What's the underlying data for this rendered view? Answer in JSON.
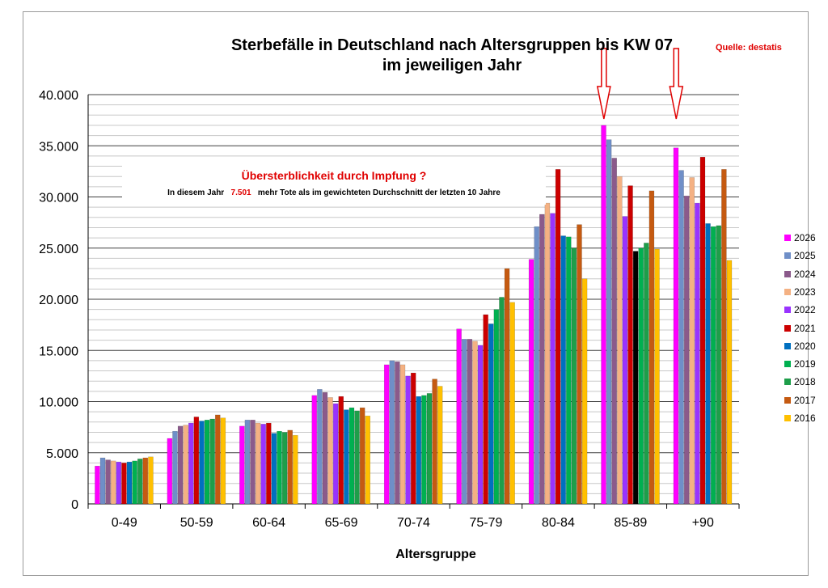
{
  "chart_data": {
    "type": "bar",
    "title": "Sterbefälle in Deutschland nach Altersgruppen bis KW 07",
    "subtitle": "im jeweiligen Jahr",
    "source": "Quelle: destatis",
    "xlabel": "Altersgruppe",
    "ylabel": "",
    "ylim": [
      0,
      40000
    ],
    "yticks": [
      "0",
      "5.000",
      "10.000",
      "15.000",
      "20.000",
      "25.000",
      "30.000",
      "35.000",
      "40.000"
    ],
    "grid": true,
    "legend_position": "right",
    "categories": [
      "0-49",
      "50-59",
      "60-64",
      "65-69",
      "70-74",
      "75-79",
      "80-84",
      "85-89",
      "+90"
    ],
    "annotation": {
      "headline": "Übersterblichkeit durch Impfung ?",
      "prefix": "In diesem Jahr",
      "value": "7.501",
      "suffix": "mehr Tote als im gewichteten Durchschnitt der letzten 10 Jahre"
    },
    "arrows_at": [
      "85-89",
      "+90"
    ],
    "series": [
      {
        "name": "2026",
        "color": "#ff00ff",
        "values": [
          3700,
          6400,
          7600,
          10600,
          13600,
          17100,
          23900,
          37000,
          34800
        ]
      },
      {
        "name": "2025",
        "color": "#6f8fc8",
        "values": [
          4500,
          7100,
          8200,
          11200,
          14000,
          16100,
          27100,
          35600,
          32600
        ]
      },
      {
        "name": "2024",
        "color": "#8b5a8b",
        "values": [
          4300,
          7600,
          8200,
          10900,
          13900,
          16100,
          28300,
          33800,
          30100
        ]
      },
      {
        "name": "2023",
        "color": "#f4b183",
        "values": [
          4200,
          7700,
          7900,
          10400,
          13600,
          15900,
          29400,
          32000,
          31900
        ]
      },
      {
        "name": "2022",
        "color": "#9933ff",
        "values": [
          4100,
          7900,
          7800,
          9800,
          12500,
          15500,
          28400,
          28100,
          29400
        ]
      },
      {
        "name": "2021",
        "color": "#cc0000",
        "values": [
          4000,
          8500,
          7900,
          10500,
          12800,
          18500,
          32700,
          31100,
          33900
        ]
      },
      {
        "name": "2020",
        "color": "#0070c0",
        "values": [
          4100,
          8100,
          6900,
          9200,
          10500,
          17600,
          26200,
          24700,
          27400
        ]
      },
      {
        "name": "2019",
        "color": "#00b050",
        "values": [
          4200,
          8200,
          7100,
          9400,
          10600,
          19000,
          26100,
          25000,
          27100
        ]
      },
      {
        "name": "2018",
        "color": "#1e9e4a",
        "values": [
          4400,
          8300,
          7000,
          9100,
          10800,
          20200,
          25000,
          25500,
          27200
        ]
      },
      {
        "name": "2017",
        "color": "#c55a11",
        "values": [
          4500,
          8700,
          7200,
          9400,
          12200,
          23000,
          27300,
          30600,
          32700
        ]
      },
      {
        "name": "2016",
        "color": "#ffc000",
        "values": [
          4600,
          8400,
          6700,
          8600,
          11500,
          19700,
          22000,
          24900,
          23800
        ]
      }
    ]
  }
}
